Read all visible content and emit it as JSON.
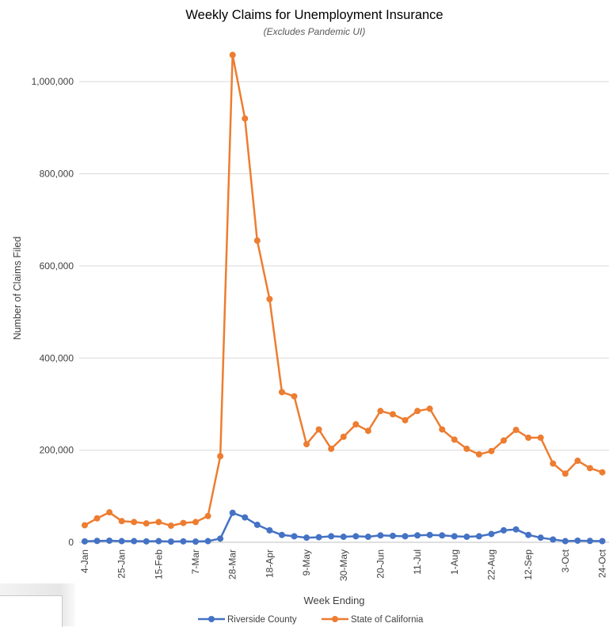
{
  "chart_data": {
    "type": "line",
    "title": "Weekly Claims for Unemployment Insurance",
    "subtitle": "(Excludes Pandemic UI)",
    "xlabel": "Week Ending",
    "ylabel": "Number of Claims Filed",
    "ylim": [
      0,
      1100000
    ],
    "yticks": [
      0,
      200000,
      400000,
      600000,
      800000,
      1000000
    ],
    "ytick_labels": [
      "0",
      "200,000",
      "400,000",
      "600,000",
      "800,000",
      "1,000,000"
    ],
    "xtick_labels": [
      "4-Jan",
      "25-Jan",
      "15-Feb",
      "7-Mar",
      "28-Mar",
      "18-Apr",
      "9-May",
      "30-May",
      "20-Jun",
      "11-Jul",
      "1-Aug",
      "22-Aug",
      "12-Sep",
      "3-Oct",
      "24-Oct"
    ],
    "xtick_every": 3,
    "grid": true,
    "legend_position": "bottom",
    "series": [
      {
        "name": "Riverside County",
        "color": "#4472C4",
        "values": [
          2000,
          3000,
          3500,
          2500,
          2500,
          2000,
          2500,
          1500,
          2000,
          1500,
          2500,
          8000,
          64000,
          54000,
          38000,
          26000,
          16000,
          13000,
          10000,
          11000,
          13000,
          12000,
          13000,
          12000,
          15000,
          14000,
          13000,
          15000,
          16000,
          15000,
          13000,
          12000,
          13000,
          18000,
          26000,
          28000,
          16000,
          10000,
          6000,
          2500,
          3500,
          3000,
          2500
        ]
      },
      {
        "name": "State of California",
        "color": "#ED7D31",
        "values": [
          37000,
          52000,
          65000,
          46000,
          44000,
          41000,
          44000,
          36000,
          42000,
          44000,
          57000,
          187000,
          1058000,
          920000,
          655000,
          528000,
          326000,
          317000,
          213000,
          245000,
          203000,
          229000,
          256000,
          242000,
          285000,
          278000,
          265000,
          285000,
          290000,
          245000,
          223000,
          203000,
          191000,
          198000,
          221000,
          244000,
          227000,
          227000,
          171000,
          149000,
          177000,
          161000,
          152000
        ]
      }
    ]
  }
}
